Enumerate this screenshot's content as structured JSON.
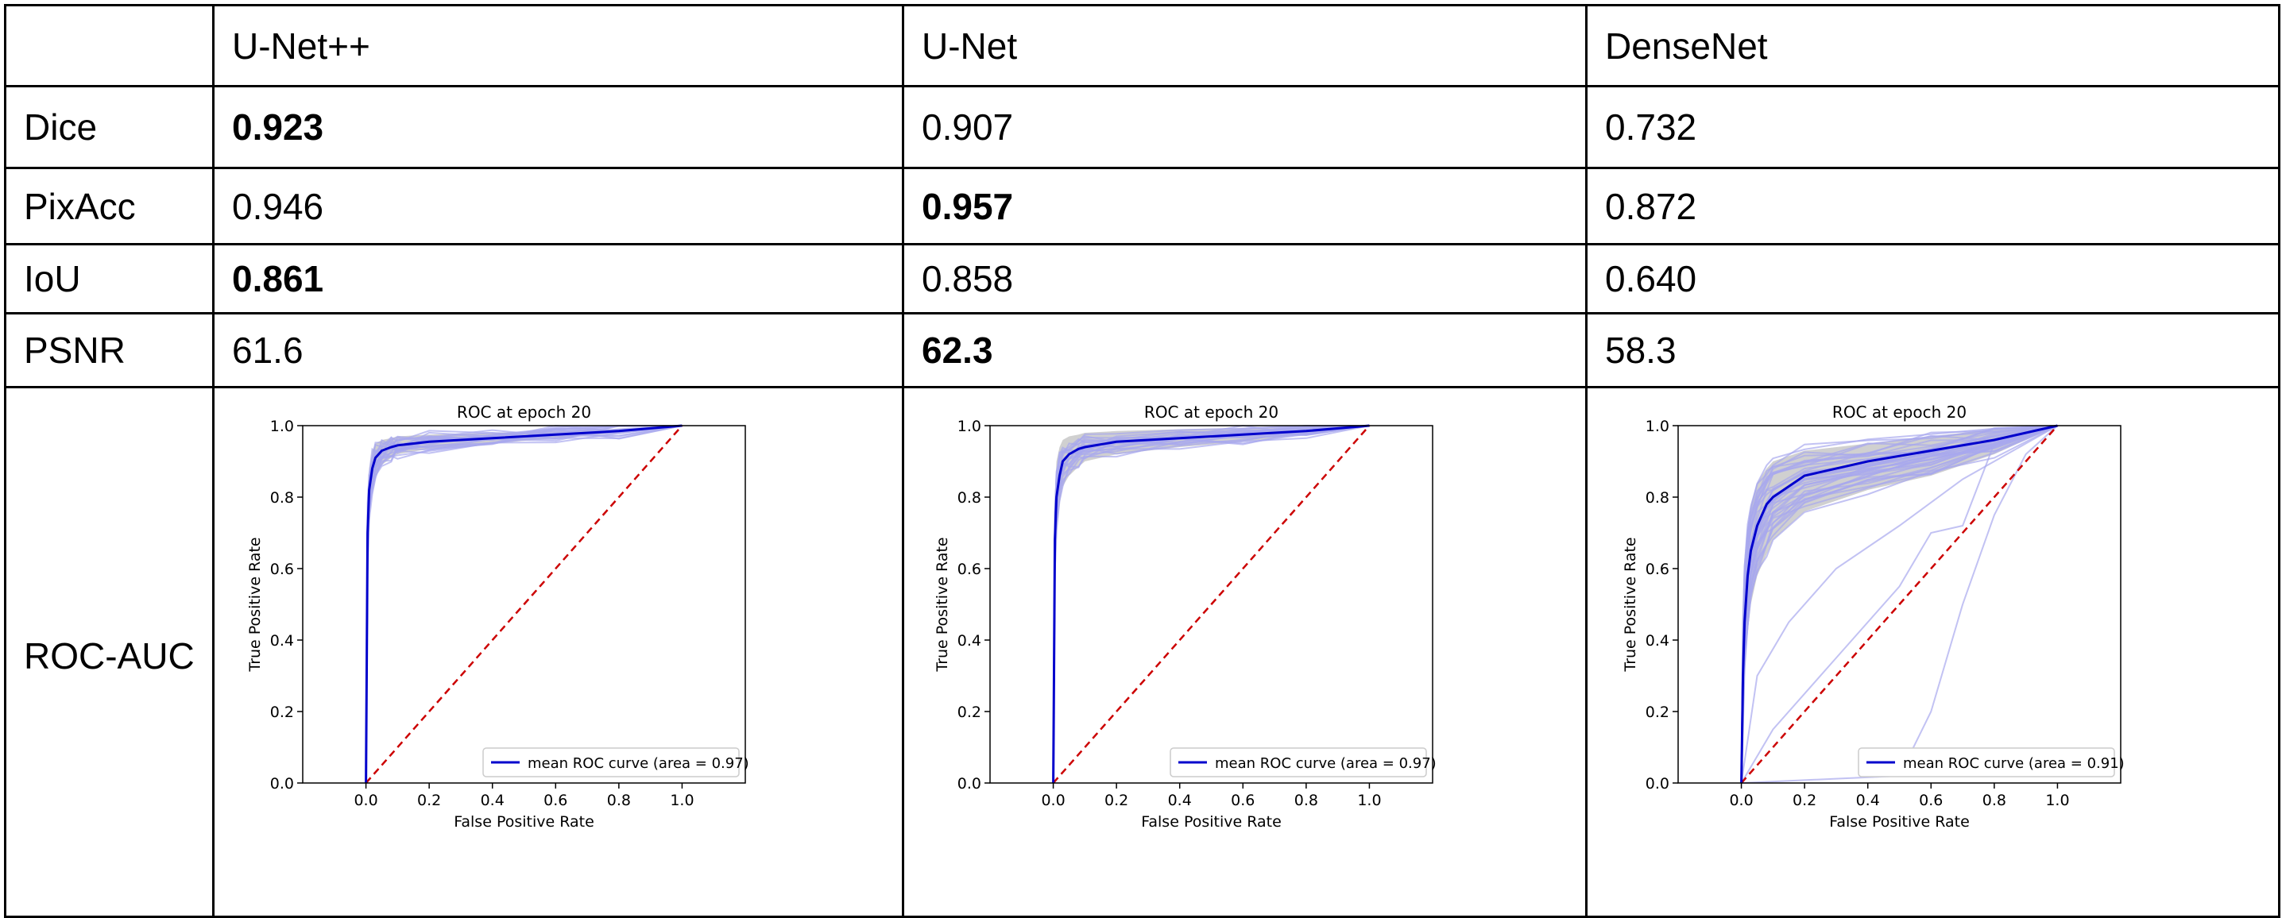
{
  "table": {
    "columns": [
      "",
      "U-Net++",
      "U-Net",
      "DenseNet"
    ],
    "rows": [
      {
        "metric": "Dice",
        "values": [
          "0.923",
          "0.907",
          "0.732"
        ],
        "best": 0
      },
      {
        "metric": "PixAcc",
        "values": [
          "0.946",
          "0.957",
          "0.872"
        ],
        "best": 1
      },
      {
        "metric": "IoU",
        "values": [
          "0.861",
          "0.858",
          "0.640"
        ],
        "best": 0
      },
      {
        "metric": "PSNR",
        "values": [
          "61.6",
          "62.3",
          "58.3"
        ],
        "best": 1
      },
      {
        "metric": "ROC-AUC",
        "values": [
          "",
          "",
          ""
        ],
        "best": null
      }
    ]
  },
  "colors": {
    "mean_curve": "#0000cc",
    "fold_curves": "#a8a8ee",
    "band": "#c8c8c8",
    "diagonal": "#cc0000"
  },
  "chart_data": [
    {
      "type": "line",
      "title": "ROC at epoch 20",
      "xlabel": "False Positive Rate",
      "ylabel": "True Positive Rate",
      "xlim": [
        -0.2,
        1.2
      ],
      "ylim": [
        0,
        1
      ],
      "xticks": [
        "0.0",
        "0.2",
        "0.4",
        "0.6",
        "0.8",
        "1.0"
      ],
      "yticks": [
        "0.0",
        "0.2",
        "0.4",
        "0.6",
        "0.8",
        "1.0"
      ],
      "legend": "lower-right",
      "series": [
        {
          "name": "mean ROC curve (area = 0.97)",
          "x": [
            0,
            0.005,
            0.01,
            0.02,
            0.03,
            0.05,
            0.08,
            0.1,
            0.2,
            0.4,
            0.6,
            0.8,
            1.0
          ],
          "y": [
            0,
            0.7,
            0.82,
            0.88,
            0.91,
            0.93,
            0.94,
            0.945,
            0.955,
            0.965,
            0.975,
            0.985,
            1.0
          ]
        }
      ],
      "band_upper": [
        0,
        0.78,
        0.88,
        0.93,
        0.95,
        0.96,
        0.965,
        0.97,
        0.975,
        0.98,
        0.985,
        0.99,
        1.0
      ],
      "band_lower": [
        0,
        0.6,
        0.75,
        0.82,
        0.86,
        0.89,
        0.91,
        0.92,
        0.935,
        0.95,
        0.965,
        0.98,
        1.0
      ],
      "diagonal": [
        [
          0,
          0
        ],
        [
          1,
          1
        ]
      ]
    },
    {
      "type": "line",
      "title": "ROC at epoch 20",
      "xlabel": "False Positive Rate",
      "ylabel": "True Positive Rate",
      "xlim": [
        -0.2,
        1.2
      ],
      "ylim": [
        0,
        1
      ],
      "xticks": [
        "0.0",
        "0.2",
        "0.4",
        "0.6",
        "0.8",
        "1.0"
      ],
      "yticks": [
        "0.0",
        "0.2",
        "0.4",
        "0.6",
        "0.8",
        "1.0"
      ],
      "legend": "lower-right",
      "series": [
        {
          "name": "mean ROC curve (area = 0.97)",
          "x": [
            0,
            0.005,
            0.01,
            0.02,
            0.03,
            0.05,
            0.08,
            0.1,
            0.2,
            0.4,
            0.6,
            0.8,
            1.0
          ],
          "y": [
            0,
            0.68,
            0.8,
            0.86,
            0.9,
            0.92,
            0.935,
            0.94,
            0.955,
            0.965,
            0.975,
            0.985,
            1.0
          ]
        }
      ],
      "band_upper": [
        0,
        0.8,
        0.9,
        0.94,
        0.96,
        0.97,
        0.975,
        0.98,
        0.985,
        0.99,
        0.993,
        0.996,
        1.0
      ],
      "band_lower": [
        0,
        0.55,
        0.7,
        0.78,
        0.83,
        0.86,
        0.885,
        0.9,
        0.92,
        0.94,
        0.955,
        0.975,
        1.0
      ],
      "diagonal": [
        [
          0,
          0
        ],
        [
          1,
          1
        ]
      ]
    },
    {
      "type": "line",
      "title": "ROC at epoch 20",
      "xlabel": "False Positive Rate",
      "ylabel": "True Positive Rate",
      "xlim": [
        -0.2,
        1.2
      ],
      "ylim": [
        0,
        1
      ],
      "xticks": [
        "0.0",
        "0.2",
        "0.4",
        "0.6",
        "0.8",
        "1.0"
      ],
      "yticks": [
        "0.0",
        "0.2",
        "0.4",
        "0.6",
        "0.8",
        "1.0"
      ],
      "legend": "lower-right",
      "series": [
        {
          "name": "mean ROC curve (area = 0.91)",
          "x": [
            0,
            0.005,
            0.01,
            0.02,
            0.03,
            0.05,
            0.08,
            0.1,
            0.2,
            0.4,
            0.6,
            0.8,
            1.0
          ],
          "y": [
            0,
            0.3,
            0.45,
            0.58,
            0.65,
            0.72,
            0.78,
            0.8,
            0.86,
            0.9,
            0.93,
            0.96,
            1.0
          ]
        }
      ],
      "band_upper": [
        0,
        0.45,
        0.6,
        0.72,
        0.78,
        0.84,
        0.88,
        0.9,
        0.93,
        0.95,
        0.97,
        0.99,
        1.0
      ],
      "band_lower": [
        0,
        0.15,
        0.3,
        0.42,
        0.5,
        0.58,
        0.64,
        0.68,
        0.76,
        0.82,
        0.86,
        0.92,
        1.0
      ],
      "diagonal": [
        [
          0,
          0
        ],
        [
          1,
          1
        ]
      ]
    }
  ]
}
